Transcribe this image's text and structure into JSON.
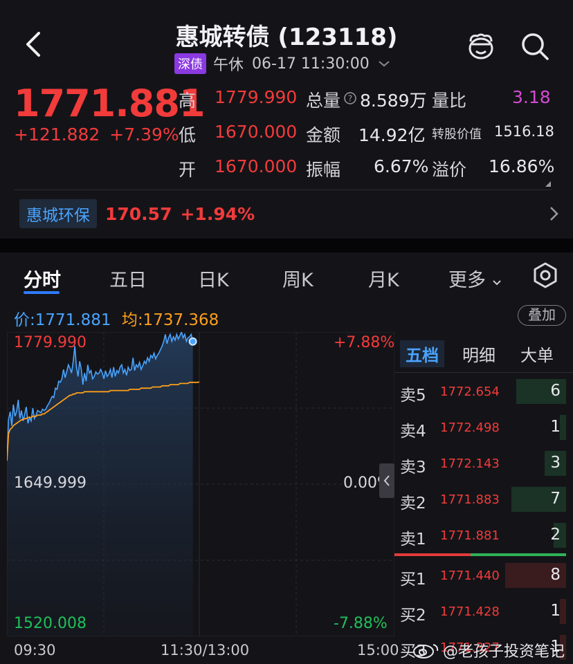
{
  "header": {
    "title": "惠城转债 (123118)",
    "tag": "深债",
    "session": "午休",
    "datetime": "06-17 11:30:00"
  },
  "quote": {
    "price": "1771.881",
    "change": "+121.882",
    "change_pct": "+7.39%",
    "stats": [
      {
        "label": "高",
        "value": "1779.990"
      },
      {
        "label": "低",
        "value": "1670.000"
      },
      {
        "label": "开",
        "value": "1670.000"
      }
    ],
    "stats2": [
      {
        "label": "总量",
        "value": "8.589万"
      },
      {
        "label": "金额",
        "value": "14.92亿"
      },
      {
        "label": "振幅",
        "value": "6.67%"
      }
    ],
    "stats3": [
      {
        "label": "量比",
        "value": "3.18"
      },
      {
        "label": "转股价值",
        "value": "1516.18"
      },
      {
        "label": "溢价",
        "value": "16.86%"
      }
    ]
  },
  "underlying": {
    "name": "惠城环保",
    "price": "170.57",
    "change_pct": "+1.94%"
  },
  "tabs": [
    {
      "label": "分时",
      "active": true
    },
    {
      "label": "五日"
    },
    {
      "label": "日K"
    },
    {
      "label": "周K"
    },
    {
      "label": "月K"
    },
    {
      "label": "更多"
    }
  ],
  "chart_header": {
    "price_label": "价:1771.881",
    "avg_label": "均:1737.368",
    "overlay_button": "叠加"
  },
  "chart_axes": {
    "top_left": "1779.990",
    "top_right": "+7.88%",
    "mid_left": "1649.999",
    "mid_right": "0.00%",
    "bottom_left": "1520.008",
    "bottom_right": "-7.88%",
    "time_start": "09:30",
    "time_mid": "11:30/13:00",
    "time_end": "15:00"
  },
  "chart_data": {
    "type": "line",
    "ylim": [
      1520.008,
      1779.99
    ],
    "x_points": 120,
    "series": [
      {
        "color": "#4aa4ff",
        "values": [
          1670.0,
          1705,
          1712,
          1700,
          1718,
          1708,
          1712,
          1722,
          1706,
          1713,
          1704,
          1710,
          1716,
          1702,
          1707,
          1704,
          1715,
          1706,
          1709,
          1713,
          1712,
          1711,
          1714,
          1713,
          1714,
          1717,
          1719,
          1722,
          1725,
          1724,
          1732,
          1731,
          1738,
          1737,
          1740,
          1748,
          1741,
          1746,
          1752,
          1749,
          1745,
          1755,
          1768,
          1750,
          1742,
          1755,
          1748,
          1735,
          1745,
          1738,
          1752,
          1745,
          1747,
          1740,
          1742,
          1746,
          1744,
          1745,
          1748,
          1745,
          1740,
          1747,
          1742,
          1744,
          1748,
          1741,
          1750,
          1742,
          1747,
          1745,
          1750,
          1752,
          1745,
          1748,
          1743,
          1750,
          1747,
          1748,
          1758,
          1747,
          1752,
          1750,
          1754,
          1748,
          1751,
          1755,
          1753,
          1758,
          1755,
          1760,
          1758,
          1762,
          1757,
          1760,
          1762,
          1765,
          1768,
          1772,
          1778,
          1770,
          1775,
          1778,
          1772,
          1776,
          1773,
          1778,
          1774,
          1777,
          1780,
          1775,
          1778,
          1772,
          1775,
          1776,
          1778,
          1771.881
        ]
      },
      {
        "color": "#ff9f1a",
        "values": [
          1670.0,
          1693,
          1697,
          1698,
          1700,
          1701,
          1702,
          1703,
          1704,
          1705,
          1705,
          1706,
          1706,
          1707,
          1707,
          1707,
          1708,
          1708,
          1708,
          1709,
          1709,
          1709,
          1710,
          1710,
          1711,
          1712,
          1713,
          1714,
          1715,
          1716,
          1717,
          1718,
          1719,
          1720,
          1721,
          1722,
          1723,
          1724,
          1725,
          1726,
          1726,
          1727,
          1727,
          1728,
          1728,
          1728,
          1728,
          1728,
          1729,
          1729,
          1729,
          1729,
          1729,
          1729,
          1729,
          1729,
          1729,
          1729,
          1729,
          1729,
          1729,
          1729,
          1729,
          1729,
          1730,
          1730,
          1730,
          1730,
          1730,
          1730,
          1730,
          1730,
          1730,
          1730,
          1730,
          1730,
          1731,
          1731,
          1731,
          1731,
          1731,
          1731,
          1731,
          1732,
          1732,
          1732,
          1732,
          1732,
          1732,
          1732,
          1733,
          1733,
          1733,
          1733,
          1733,
          1733,
          1734,
          1734,
          1734,
          1734,
          1734,
          1735,
          1735,
          1735,
          1735,
          1735,
          1735,
          1736,
          1736,
          1736,
          1736,
          1736,
          1736,
          1737,
          1737,
          1737,
          1737,
          1737,
          1737,
          1737.368
        ]
      }
    ]
  },
  "orderbook": {
    "tabs": [
      "五档",
      "明细",
      "大单"
    ],
    "asks": [
      {
        "side": "卖5",
        "price": "1772.654",
        "vol": "6",
        "fill": 0.8
      },
      {
        "side": "卖4",
        "price": "1772.498",
        "vol": "1",
        "fill": 0.1
      },
      {
        "side": "卖3",
        "price": "1772.143",
        "vol": "3",
        "fill": 0.35
      },
      {
        "side": "卖2",
        "price": "1771.883",
        "vol": "7",
        "fill": 0.88
      },
      {
        "side": "卖1",
        "price": "1771.881",
        "vol": "2",
        "fill": 0.2
      }
    ],
    "bids": [
      {
        "side": "买1",
        "price": "1771.440",
        "vol": "8",
        "fill": 0.98
      },
      {
        "side": "买2",
        "price": "1771.428",
        "vol": "1",
        "fill": 0.1
      },
      {
        "side": "买3",
        "price": "1771.327",
        "vol": "1",
        "fill": 0.1
      }
    ]
  },
  "watermark": "@老孩子投资笔记"
}
